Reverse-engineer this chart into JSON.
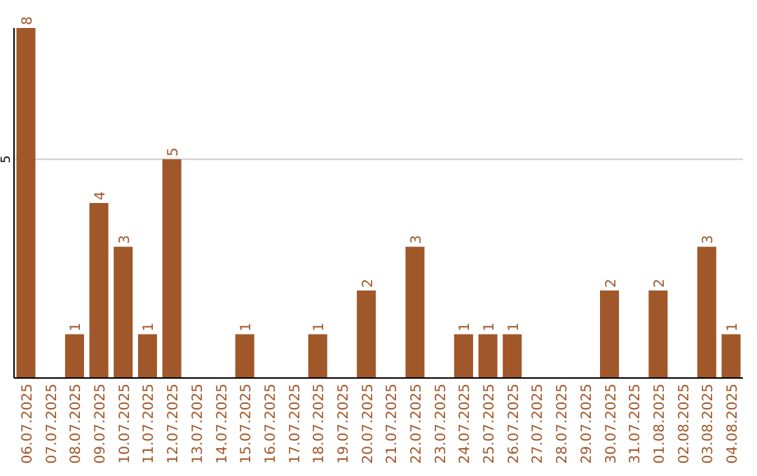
{
  "chart_data": {
    "type": "bar",
    "categories": [
      "06.07.2025",
      "07.07.2025",
      "08.07.2025",
      "09.07.2025",
      "10.07.2025",
      "11.07.2025",
      "12.07.2025",
      "13.07.2025",
      "14.07.2025",
      "15.07.2025",
      "16.07.2025",
      "17.07.2025",
      "18.07.2025",
      "19.07.2025",
      "20.07.2025",
      "21.07.2025",
      "22.07.2025",
      "23.07.2025",
      "24.07.2025",
      "25.07.2025",
      "26.07.2025",
      "27.07.2025",
      "28.07.2025",
      "29.07.2025",
      "30.07.2025",
      "31.07.2025",
      "01.08.2025",
      "02.08.2025",
      "03.08.2025",
      "04.08.2025"
    ],
    "values": [
      8,
      0,
      1,
      4,
      3,
      1,
      5,
      0,
      0,
      1,
      0,
      0,
      1,
      0,
      2,
      0,
      3,
      0,
      1,
      1,
      1,
      0,
      0,
      0,
      2,
      0,
      2,
      0,
      3,
      1
    ],
    "value_labels": [
      "8",
      null,
      "1",
      "4",
      "3",
      "1",
      "5",
      null,
      null,
      "1",
      null,
      null,
      "1",
      null,
      "2",
      null,
      "3",
      null,
      "1",
      "1",
      "1",
      null,
      null,
      null,
      "2",
      null,
      "2",
      null,
      "3",
      "1"
    ],
    "color": "#a0572a",
    "ylim": [
      0,
      8
    ],
    "yticks": [
      5
    ],
    "grid": "y"
  }
}
